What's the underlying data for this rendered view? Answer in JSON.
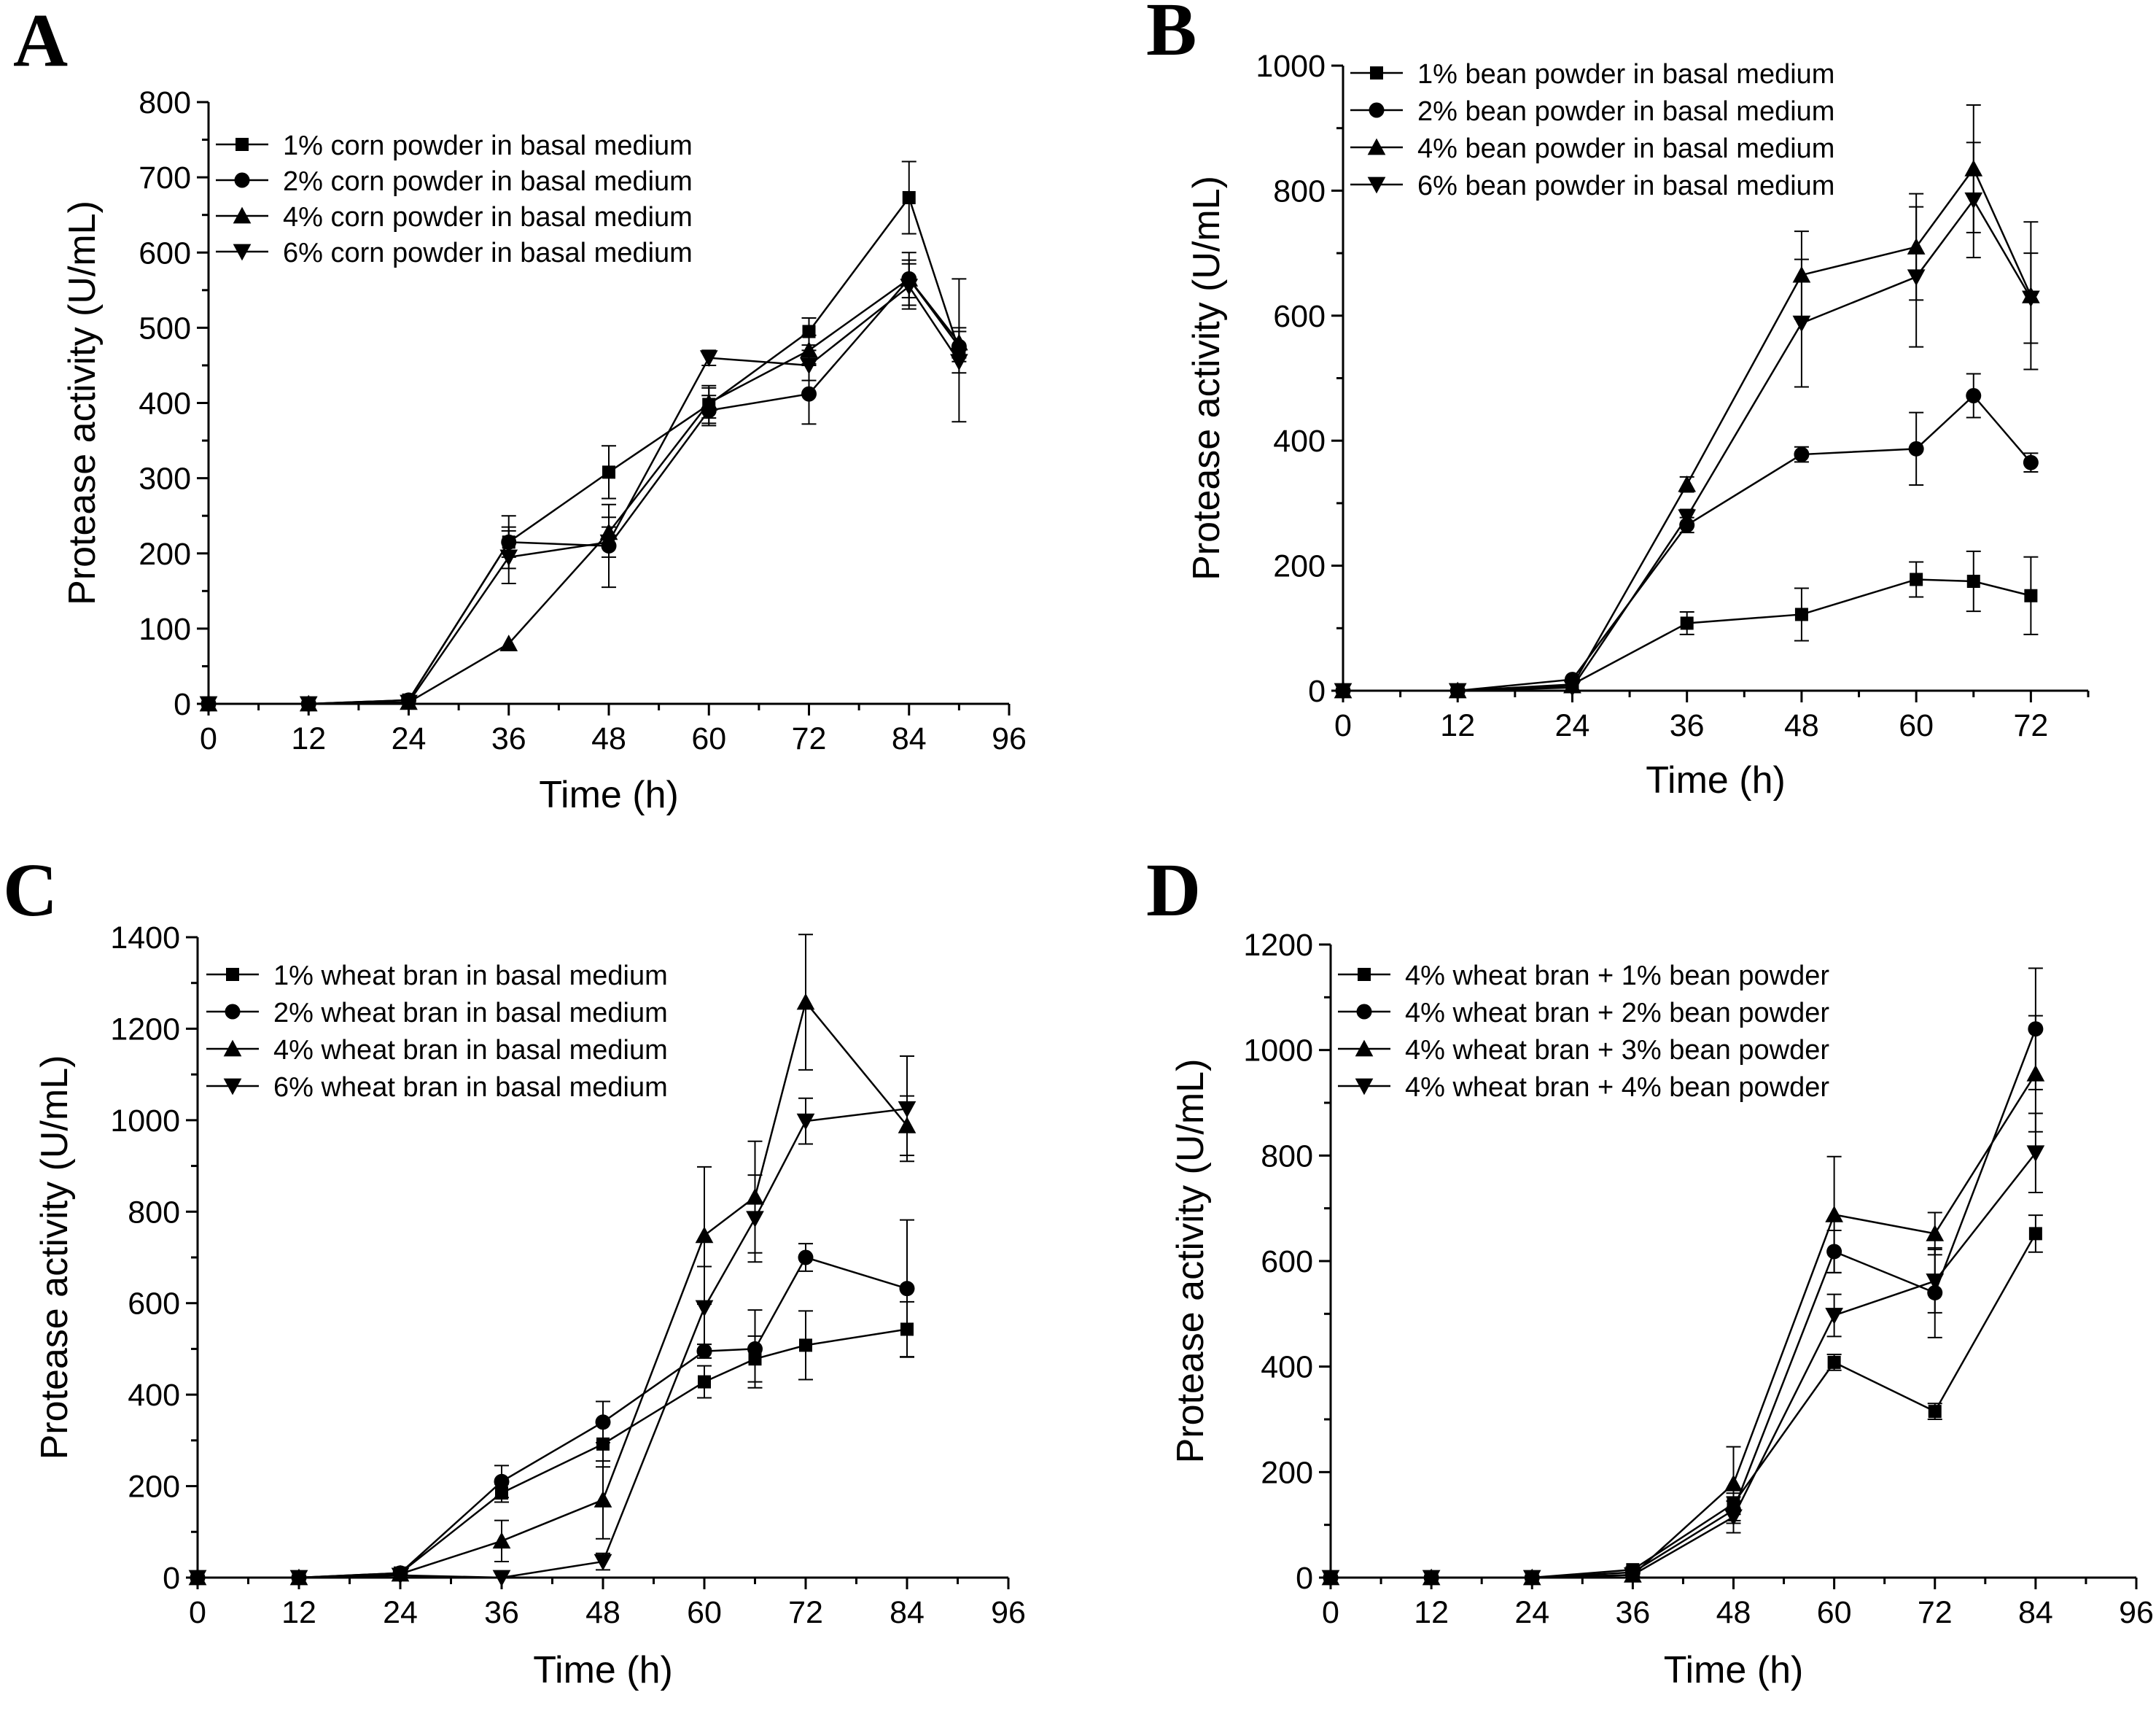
{
  "chart_data": [
    {
      "panel": "A",
      "type": "line",
      "xlabel": "Time (h)",
      "ylabel": "Protease activity (U/mL)",
      "xlim": [
        0,
        96
      ],
      "ylim": [
        0,
        800
      ],
      "xticks": [
        0,
        12,
        24,
        36,
        48,
        60,
        72,
        84,
        96
      ],
      "yticks": [
        0,
        100,
        200,
        300,
        400,
        500,
        600,
        700,
        800
      ],
      "grid": false,
      "legend_position": "top-left",
      "series": [
        {
          "name": "1% corn powder in basal medium",
          "marker": "square",
          "x": [
            0,
            12,
            24,
            36,
            48,
            60,
            72,
            84,
            90
          ],
          "y": [
            0,
            0,
            5,
            215,
            308,
            398,
            495,
            673,
            470
          ],
          "err": [
            0,
            0,
            0,
            35,
            35,
            25,
            18,
            48,
            95
          ]
        },
        {
          "name": "2% corn powder in basal medium",
          "marker": "circle",
          "x": [
            0,
            12,
            24,
            36,
            48,
            60,
            72,
            84,
            90
          ],
          "y": [
            0,
            0,
            5,
            215,
            210,
            390,
            412,
            565,
            475
          ],
          "err": [
            0,
            0,
            0,
            20,
            55,
            20,
            40,
            35,
            20
          ]
        },
        {
          "name": "4% corn powder in basal medium",
          "marker": "triangle-up",
          "x": [
            0,
            12,
            24,
            36,
            48,
            60,
            72,
            84,
            90
          ],
          "y": [
            0,
            0,
            2,
            80,
            228,
            400,
            470,
            565,
            480
          ],
          "err": [
            0,
            0,
            0,
            0,
            20,
            20,
            20,
            25,
            20
          ]
        },
        {
          "name": "6% corn powder in basal medium",
          "marker": "triangle-down",
          "x": [
            0,
            12,
            24,
            36,
            48,
            60,
            72,
            84,
            90
          ],
          "y": [
            0,
            0,
            2,
            195,
            215,
            460,
            450,
            555,
            455
          ],
          "err": [
            0,
            0,
            0,
            35,
            20,
            10,
            20,
            30,
            15
          ]
        }
      ]
    },
    {
      "panel": "B",
      "type": "line",
      "xlabel": "Time (h)",
      "ylabel": "Protease activity (U/mL)",
      "xlim": [
        0,
        78
      ],
      "ylim": [
        0,
        1000
      ],
      "xticks": [
        0,
        12,
        24,
        36,
        48,
        60,
        72
      ],
      "yticks": [
        0,
        200,
        400,
        600,
        800,
        1000
      ],
      "grid": false,
      "legend_position": "top-left",
      "series": [
        {
          "name": "1% bean powder in basal medium",
          "marker": "square",
          "x": [
            0,
            12,
            24,
            36,
            48,
            60,
            66,
            72
          ],
          "y": [
            0,
            0,
            10,
            108,
            122,
            178,
            175,
            152
          ],
          "err": [
            0,
            0,
            0,
            18,
            42,
            28,
            48,
            62
          ]
        },
        {
          "name": "2% bean powder in basal medium",
          "marker": "circle",
          "x": [
            0,
            12,
            24,
            36,
            48,
            60,
            66,
            72
          ],
          "y": [
            0,
            0,
            18,
            265,
            378,
            387,
            472,
            365
          ],
          "err": [
            0,
            0,
            0,
            12,
            12,
            58,
            35,
            15
          ]
        },
        {
          "name": "4% bean powder in basal medium",
          "marker": "triangle-up",
          "x": [
            0,
            12,
            24,
            36,
            48,
            60,
            66,
            72
          ],
          "y": [
            0,
            0,
            8,
            330,
            665,
            710,
            835,
            632
          ],
          "err": [
            0,
            0,
            0,
            12,
            70,
            85,
            102,
            118
          ]
        },
        {
          "name": "6% bean powder in basal medium",
          "marker": "triangle-down",
          "x": [
            0,
            12,
            24,
            36,
            48,
            60,
            66,
            72
          ],
          "y": [
            0,
            0,
            5,
            278,
            588,
            662,
            785,
            628
          ],
          "err": [
            0,
            0,
            0,
            12,
            102,
            112,
            92,
            72
          ]
        }
      ]
    },
    {
      "panel": "C",
      "type": "line",
      "xlabel": "Time (h)",
      "ylabel": "Protease activity (U/mL)",
      "xlim": [
        0,
        96
      ],
      "ylim": [
        0,
        1400
      ],
      "xticks": [
        0,
        12,
        24,
        36,
        48,
        60,
        72,
        84,
        96
      ],
      "yticks": [
        0,
        200,
        400,
        600,
        800,
        1000,
        1200,
        1400
      ],
      "grid": false,
      "legend_position": "top-left",
      "series": [
        {
          "name": "1% wheat bran in basal medium",
          "marker": "square",
          "x": [
            0,
            12,
            24,
            36,
            48,
            60,
            66,
            72,
            84
          ],
          "y": [
            0,
            0,
            10,
            185,
            292,
            428,
            478,
            508,
            543
          ],
          "err": [
            0,
            0,
            0,
            20,
            50,
            35,
            50,
            75,
            60
          ]
        },
        {
          "name": "2% wheat bran in basal medium",
          "marker": "circle",
          "x": [
            0,
            12,
            24,
            36,
            48,
            60,
            66,
            72,
            84
          ],
          "y": [
            0,
            0,
            10,
            210,
            340,
            495,
            500,
            700,
            632
          ],
          "err": [
            0,
            0,
            0,
            35,
            45,
            15,
            85,
            30,
            150
          ]
        },
        {
          "name": "4% wheat bran in basal medium",
          "marker": "triangle-up",
          "x": [
            0,
            12,
            24,
            36,
            48,
            60,
            66,
            72,
            84
          ],
          "y": [
            0,
            0,
            8,
            80,
            170,
            748,
            832,
            1258,
            988
          ],
          "err": [
            0,
            0,
            0,
            45,
            85,
            150,
            122,
            148,
            65
          ]
        },
        {
          "name": "6% wheat bran in basal medium",
          "marker": "triangle-down",
          "x": [
            0,
            12,
            24,
            36,
            48,
            60,
            66,
            72,
            84
          ],
          "y": [
            0,
            0,
            5,
            0,
            35,
            590,
            785,
            998,
            1025
          ],
          "err": [
            0,
            0,
            0,
            0,
            18,
            90,
            95,
            50,
            115
          ]
        }
      ]
    },
    {
      "panel": "D",
      "type": "line",
      "xlabel": "Time (h)",
      "ylabel": "Protease activity (U/mL)",
      "xlim": [
        0,
        96
      ],
      "ylim": [
        0,
        1200
      ],
      "xticks": [
        0,
        12,
        24,
        36,
        48,
        60,
        72,
        84,
        96
      ],
      "yticks": [
        0,
        200,
        400,
        600,
        800,
        1000,
        1200
      ],
      "grid": false,
      "legend_position": "top-left",
      "series": [
        {
          "name": "4% wheat bran + 1% bean powder",
          "marker": "square",
          "x": [
            0,
            12,
            24,
            36,
            48,
            60,
            72,
            84
          ],
          "y": [
            0,
            0,
            0,
            15,
            140,
            408,
            315,
            652
          ],
          "err": [
            0,
            0,
            0,
            5,
            20,
            15,
            15,
            35
          ]
        },
        {
          "name": "4% wheat bran + 2% bean powder",
          "marker": "circle",
          "x": [
            0,
            12,
            24,
            36,
            48,
            60,
            72,
            84
          ],
          "y": [
            0,
            0,
            0,
            10,
            128,
            618,
            540,
            1040
          ],
          "err": [
            0,
            0,
            0,
            3,
            25,
            40,
            85,
            115
          ]
        },
        {
          "name": "4% wheat bran + 3% bean powder",
          "marker": "triangle-up",
          "x": [
            0,
            12,
            24,
            36,
            48,
            60,
            72,
            84
          ],
          "y": [
            0,
            0,
            0,
            5,
            178,
            688,
            652,
            955
          ],
          "err": [
            0,
            0,
            0,
            3,
            70,
            110,
            40,
            110
          ]
        },
        {
          "name": "4% wheat bran + 4% bean powder",
          "marker": "triangle-down",
          "x": [
            0,
            12,
            24,
            36,
            48,
            60,
            72,
            84
          ],
          "y": [
            0,
            0,
            0,
            5,
            115,
            497,
            562,
            805
          ],
          "err": [
            0,
            0,
            0,
            3,
            30,
            40,
            60,
            75
          ]
        }
      ]
    }
  ]
}
